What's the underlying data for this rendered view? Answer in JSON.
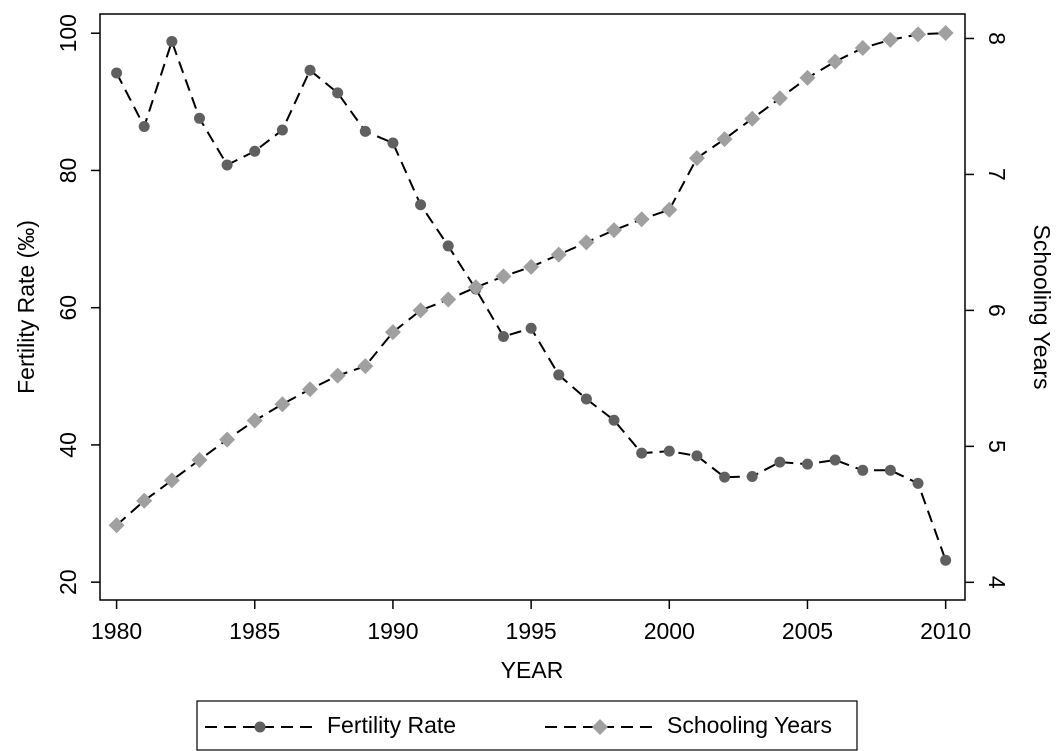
{
  "chart_data": {
    "type": "line",
    "x_label": "YEAR",
    "y_label": "Fertility Rate (‰)",
    "y2_label": "Schooling Years",
    "x": [
      1980,
      1981,
      1982,
      1983,
      1984,
      1985,
      1986,
      1987,
      1988,
      1989,
      1990,
      1991,
      1992,
      1993,
      1994,
      1995,
      1996,
      1997,
      1998,
      1999,
      2000,
      2001,
      2002,
      2003,
      2004,
      2005,
      2006,
      2007,
      2008,
      2009,
      2010
    ],
    "series": [
      {
        "name": "Fertility Rate",
        "color": "#606060",
        "line_color": "#000000",
        "marker": "circle",
        "axis": "y",
        "values": [
          94.2,
          86.4,
          98.8,
          87.6,
          80.8,
          82.8,
          85.9,
          94.6,
          91.3,
          85.7,
          84.0,
          75.0,
          69.0,
          62.7,
          55.8,
          57.0,
          50.2,
          46.7,
          43.6,
          38.8,
          39.1,
          38.4,
          35.3,
          35.4,
          37.5,
          37.2,
          37.8,
          36.3,
          36.3,
          34.4,
          23.2
        ]
      },
      {
        "name": "Schooling Years",
        "color": "#a0a0a0",
        "line_color": "#000000",
        "marker": "diamond",
        "axis": "y2",
        "values": [
          4.42,
          4.6,
          4.75,
          4.9,
          5.05,
          5.19,
          5.31,
          5.42,
          5.52,
          5.59,
          5.84,
          6.0,
          6.08,
          6.17,
          6.25,
          6.32,
          6.41,
          6.5,
          6.59,
          6.67,
          6.74,
          7.12,
          7.26,
          7.41,
          7.56,
          7.71,
          7.83,
          7.93,
          7.99,
          8.03,
          8.04
        ]
      }
    ],
    "xlim": [
      1979.4,
      2010.7
    ],
    "xticks": [
      1980,
      1985,
      1990,
      1995,
      2000,
      2005,
      2010
    ],
    "ylim": [
      17.4,
      102.8
    ],
    "yticks": [
      20,
      40,
      60,
      80,
      100
    ],
    "y2lim": [
      3.87,
      8.18
    ],
    "y2ticks": [
      4,
      5,
      6,
      7,
      8
    ],
    "dashed": true,
    "legend": "bottom"
  }
}
